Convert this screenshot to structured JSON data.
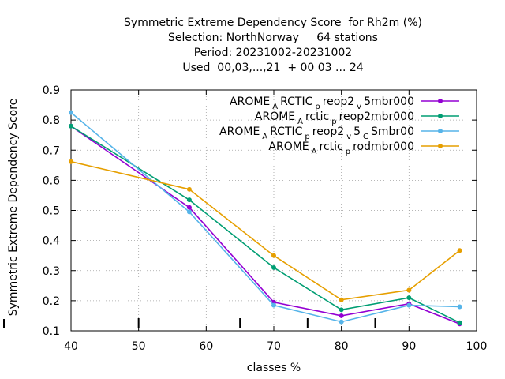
{
  "chart_data": {
    "type": "line",
    "title_lines": [
      "Symmetric Extreme Dependency Score  for Rh2m (%)",
      "Selection: NorthNorway     64 stations",
      "Period: 20231002-20231002",
      "Used  00,03,...,21  + 00 03 ... 24"
    ],
    "xlabel": "classes %",
    "ylabel": "Symmetric Extreme Dependency Score",
    "xlim": [
      40,
      100
    ],
    "ylim": [
      0.1,
      0.9
    ],
    "xticks": [
      40,
      50,
      60,
      70,
      80,
      90,
      100
    ],
    "yticks": [
      0.1,
      0.2,
      0.3,
      0.4,
      0.5,
      0.6,
      0.7,
      0.8,
      0.9
    ],
    "grid": true,
    "legend_position": "top-right",
    "x": [
      40,
      57.5,
      70,
      80,
      90,
      97.5
    ],
    "series": [
      {
        "name": "AROME_ARCTIC_preop2_v5mbr000",
        "legend_parts": [
          [
            "AROME",
            false
          ],
          [
            "A",
            true
          ],
          [
            "RCTIC",
            false
          ],
          [
            "p",
            true
          ],
          [
            "reop2",
            false
          ],
          [
            "v",
            true
          ],
          [
            "5mbr000",
            false
          ]
        ],
        "color": "#9400d3",
        "values": [
          0.78,
          0.51,
          0.195,
          0.15,
          0.19,
          0.123
        ]
      },
      {
        "name": "AROME_Arctic_preop2mbr000",
        "legend_parts": [
          [
            "AROME",
            false
          ],
          [
            "A",
            true
          ],
          [
            "rctic",
            false
          ],
          [
            "p",
            true
          ],
          [
            "reop2mbr000",
            false
          ]
        ],
        "color": "#009e73",
        "values": [
          0.78,
          0.535,
          0.31,
          0.17,
          0.21,
          0.127
        ]
      },
      {
        "name": "AROME_ARCTIC_preop2_v5_CSmbr00",
        "legend_parts": [
          [
            "AROME",
            false
          ],
          [
            "A",
            true
          ],
          [
            "RCTIC",
            false
          ],
          [
            "p",
            true
          ],
          [
            "reop2",
            false
          ],
          [
            "v",
            true
          ],
          [
            "5",
            false
          ],
          [
            "C",
            true
          ],
          [
            "Smbr00",
            false
          ]
        ],
        "color": "#56b4e9",
        "values": [
          0.825,
          0.495,
          0.185,
          0.13,
          0.185,
          0.18
        ]
      },
      {
        "name": "AROME_Arctic_prodmbr000",
        "legend_parts": [
          [
            "AROME",
            false
          ],
          [
            "A",
            true
          ],
          [
            "rctic",
            false
          ],
          [
            "p",
            true
          ],
          [
            "rodmbr000",
            false
          ]
        ],
        "color": "#e69f00",
        "values": [
          0.662,
          0.57,
          0.35,
          0.203,
          0.235,
          0.367
        ]
      }
    ],
    "bottom_marks_x": [
      50,
      65,
      75,
      85
    ]
  }
}
